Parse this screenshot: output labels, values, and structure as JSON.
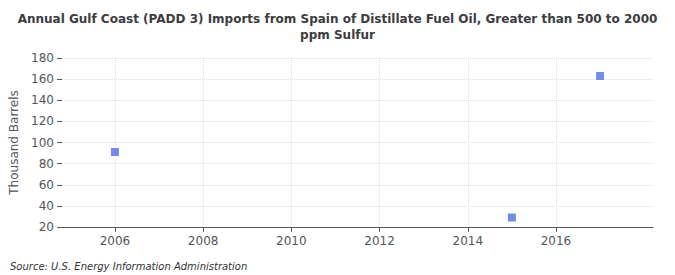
{
  "chart_data": {
    "type": "scatter",
    "title": "Annual Gulf Coast (PADD 3) Imports from Spain of Distillate Fuel Oil, Greater than 500 to 2000\nppm Sulfur",
    "ylabel": "Thousand Barrels",
    "source": "Source: U.S. Energy Information Administration",
    "x": [
      2006,
      2015,
      2017
    ],
    "values": [
      91,
      29,
      163
    ],
    "marker": "square",
    "xlim": [
      2004.8,
      2018.2
    ],
    "xticks": [
      2006,
      2008,
      2010,
      2012,
      2014,
      2016
    ],
    "ylim": [
      20,
      180
    ],
    "yticks": [
      20,
      40,
      60,
      80,
      100,
      120,
      140,
      160,
      180
    ],
    "grid": true
  }
}
